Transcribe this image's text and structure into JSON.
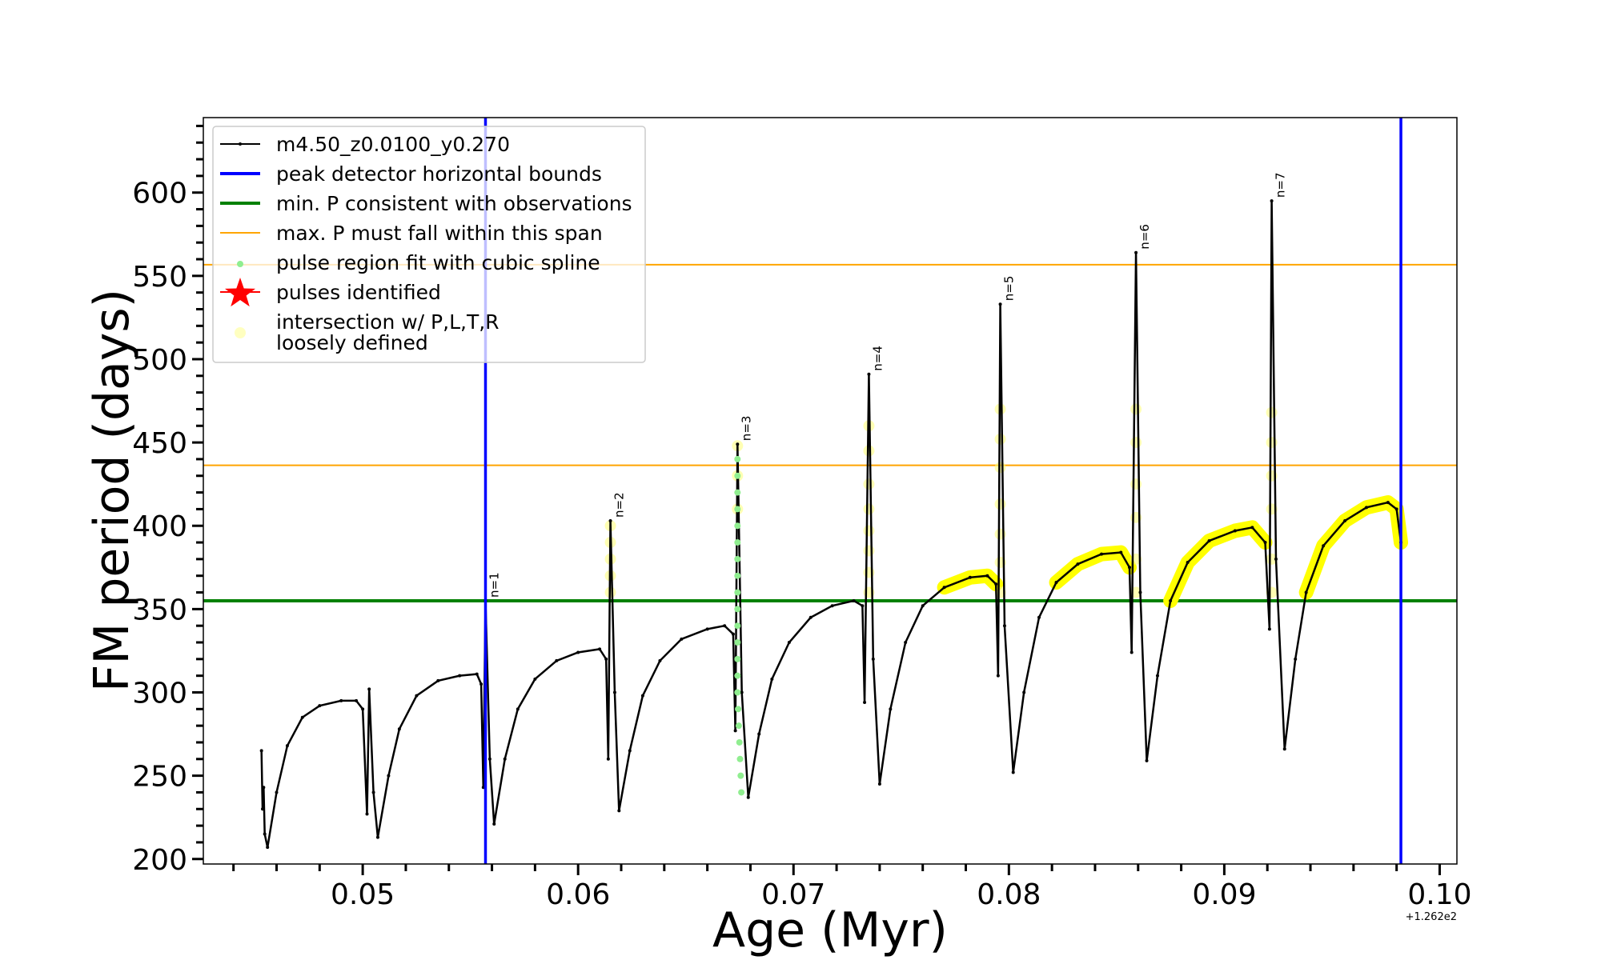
{
  "chart_data": {
    "type": "line",
    "xlabel": "Age (Myr)",
    "ylabel": "FM period (days)",
    "x_offset_text": "+1.262e2",
    "xlim": [
      0.0426,
      0.1008
    ],
    "ylim": [
      197,
      645
    ],
    "xticks": [
      0.05,
      0.06,
      0.07,
      0.08,
      0.09,
      0.1
    ],
    "xtick_labels": [
      "0.05",
      "0.06",
      "0.07",
      "0.08",
      "0.09",
      "0.10"
    ],
    "yticks": [
      200,
      250,
      300,
      350,
      400,
      450,
      500,
      550,
      600
    ],
    "ytick_labels": [
      "200",
      "250",
      "300",
      "350",
      "400",
      "450",
      "500",
      "550",
      "600"
    ],
    "grid": false,
    "legend_placement": "upper-left",
    "legend": [
      {
        "label": "m4.50_z0.0100_y0.270",
        "kind": "line-marker",
        "color": "#000000"
      },
      {
        "label": "peak detector horizontal bounds",
        "kind": "line-thick",
        "color": "#0000ff"
      },
      {
        "label": "min. P consistent with observations",
        "kind": "line-thick",
        "color": "#008000"
      },
      {
        "label": "max. P must fall within this span",
        "kind": "line-thin",
        "color": "#ffa500"
      },
      {
        "label": "pulse region fit with cubic spline",
        "kind": "dot",
        "color": "#90ee90"
      },
      {
        "label": "pulses identified",
        "kind": "star",
        "color": "#ff0000"
      },
      {
        "label": "intersection w/ P,L,T,R\nloosely defined",
        "kind": "circle",
        "color": "#ffffc0"
      }
    ],
    "vertical_lines": {
      "color": "#0000ff",
      "x": [
        0.0557,
        0.0982
      ]
    },
    "min_period_line": {
      "color": "#008000",
      "y": 355
    },
    "max_period_span": {
      "color": "#ffa500",
      "y": [
        436.3,
        556.7
      ]
    },
    "series": [
      {
        "name": "m4.50_z0.0100_y0.270",
        "color": "#000000",
        "points": [
          [
            0.0453,
            265
          ],
          [
            0.04535,
            230
          ],
          [
            0.0454,
            243
          ],
          [
            0.04545,
            215
          ],
          [
            0.04558,
            207
          ],
          [
            0.046,
            240
          ],
          [
            0.0465,
            268
          ],
          [
            0.0472,
            285
          ],
          [
            0.048,
            292
          ],
          [
            0.049,
            295
          ],
          [
            0.0497,
            295
          ],
          [
            0.05,
            290
          ],
          [
            0.0502,
            227
          ],
          [
            0.0503,
            302
          ],
          [
            0.0505,
            240
          ],
          [
            0.0507,
            213
          ],
          [
            0.0512,
            250
          ],
          [
            0.0517,
            278
          ],
          [
            0.0525,
            298
          ],
          [
            0.0535,
            307
          ],
          [
            0.0545,
            310
          ],
          [
            0.0553,
            311
          ],
          [
            0.0555,
            305
          ],
          [
            0.0556,
            243
          ],
          [
            0.0557,
            355
          ],
          [
            0.0559,
            260
          ],
          [
            0.0561,
            221
          ],
          [
            0.0566,
            260
          ],
          [
            0.0572,
            290
          ],
          [
            0.058,
            308
          ],
          [
            0.059,
            319
          ],
          [
            0.06,
            324
          ],
          [
            0.061,
            326
          ],
          [
            0.0613,
            320
          ],
          [
            0.0614,
            260
          ],
          [
            0.0615,
            403
          ],
          [
            0.0617,
            300
          ],
          [
            0.0619,
            229
          ],
          [
            0.0624,
            265
          ],
          [
            0.063,
            298
          ],
          [
            0.0638,
            319
          ],
          [
            0.0648,
            332
          ],
          [
            0.066,
            338
          ],
          [
            0.0668,
            340
          ],
          [
            0.0672,
            335
          ],
          [
            0.0673,
            277
          ],
          [
            0.0674,
            449
          ],
          [
            0.0676,
            300
          ],
          [
            0.0679,
            237
          ],
          [
            0.0684,
            275
          ],
          [
            0.069,
            308
          ],
          [
            0.0698,
            330
          ],
          [
            0.0708,
            345
          ],
          [
            0.0718,
            352
          ],
          [
            0.0728,
            355
          ],
          [
            0.0732,
            352
          ],
          [
            0.0733,
            294
          ],
          [
            0.0735,
            491
          ],
          [
            0.0737,
            320
          ],
          [
            0.074,
            245
          ],
          [
            0.0745,
            290
          ],
          [
            0.0752,
            330
          ],
          [
            0.076,
            352
          ],
          [
            0.077,
            363
          ],
          [
            0.0782,
            369
          ],
          [
            0.079,
            370
          ],
          [
            0.0794,
            365
          ],
          [
            0.0795,
            310
          ],
          [
            0.0796,
            533
          ],
          [
            0.0798,
            340
          ],
          [
            0.0802,
            252
          ],
          [
            0.0807,
            300
          ],
          [
            0.0814,
            345
          ],
          [
            0.0822,
            366
          ],
          [
            0.0832,
            377
          ],
          [
            0.0843,
            383
          ],
          [
            0.0852,
            384
          ],
          [
            0.0856,
            375
          ],
          [
            0.0857,
            324
          ],
          [
            0.0859,
            564
          ],
          [
            0.0861,
            360
          ],
          [
            0.0864,
            259
          ],
          [
            0.0869,
            310
          ],
          [
            0.0875,
            355
          ],
          [
            0.0883,
            378
          ],
          [
            0.0893,
            391
          ],
          [
            0.0905,
            397
          ],
          [
            0.0913,
            399
          ],
          [
            0.0919,
            390
          ],
          [
            0.0921,
            338
          ],
          [
            0.0922,
            595
          ],
          [
            0.0924,
            380
          ],
          [
            0.0928,
            266
          ],
          [
            0.0933,
            320
          ],
          [
            0.0938,
            360
          ],
          [
            0.0946,
            388
          ],
          [
            0.0956,
            403
          ],
          [
            0.0966,
            411
          ],
          [
            0.0976,
            414
          ],
          [
            0.098,
            410
          ],
          [
            0.0982,
            390
          ]
        ]
      }
    ],
    "loosely_defined_region": {
      "color": "#ffff00",
      "x_from": 0.0718,
      "y_above": 353
    },
    "pulses": [
      {
        "label": "n=1",
        "x": 0.0557,
        "peak": 355,
        "loose_y": []
      },
      {
        "label": "n=2",
        "x": 0.0615,
        "peak": 403,
        "loose_y": [
          360,
          370,
          380,
          390,
          400
        ]
      },
      {
        "label": "n=3",
        "x": 0.0674,
        "peak": 449,
        "loose_y": [
          410,
          430,
          448
        ]
      },
      {
        "label": "n=4",
        "x": 0.0735,
        "peak": 491,
        "loose_y": [
          360,
          372,
          385,
          397,
          410,
          425,
          445,
          460
        ]
      },
      {
        "label": "n=5",
        "x": 0.0796,
        "peak": 533,
        "loose_y": [
          360,
          378,
          395,
          413,
          435,
          452,
          470
        ]
      },
      {
        "label": "n=6",
        "x": 0.0859,
        "peak": 564,
        "loose_y": [
          360,
          380,
          405,
          425,
          450,
          470
        ]
      },
      {
        "label": "n=7",
        "x": 0.0922,
        "peak": 595,
        "loose_y": [
          360,
          380,
          410,
          430,
          450,
          468
        ]
      }
    ],
    "cubic_spline_points": {
      "color": "#90ee90",
      "x": 0.0674,
      "y_from": 240,
      "y_to": 449
    }
  }
}
